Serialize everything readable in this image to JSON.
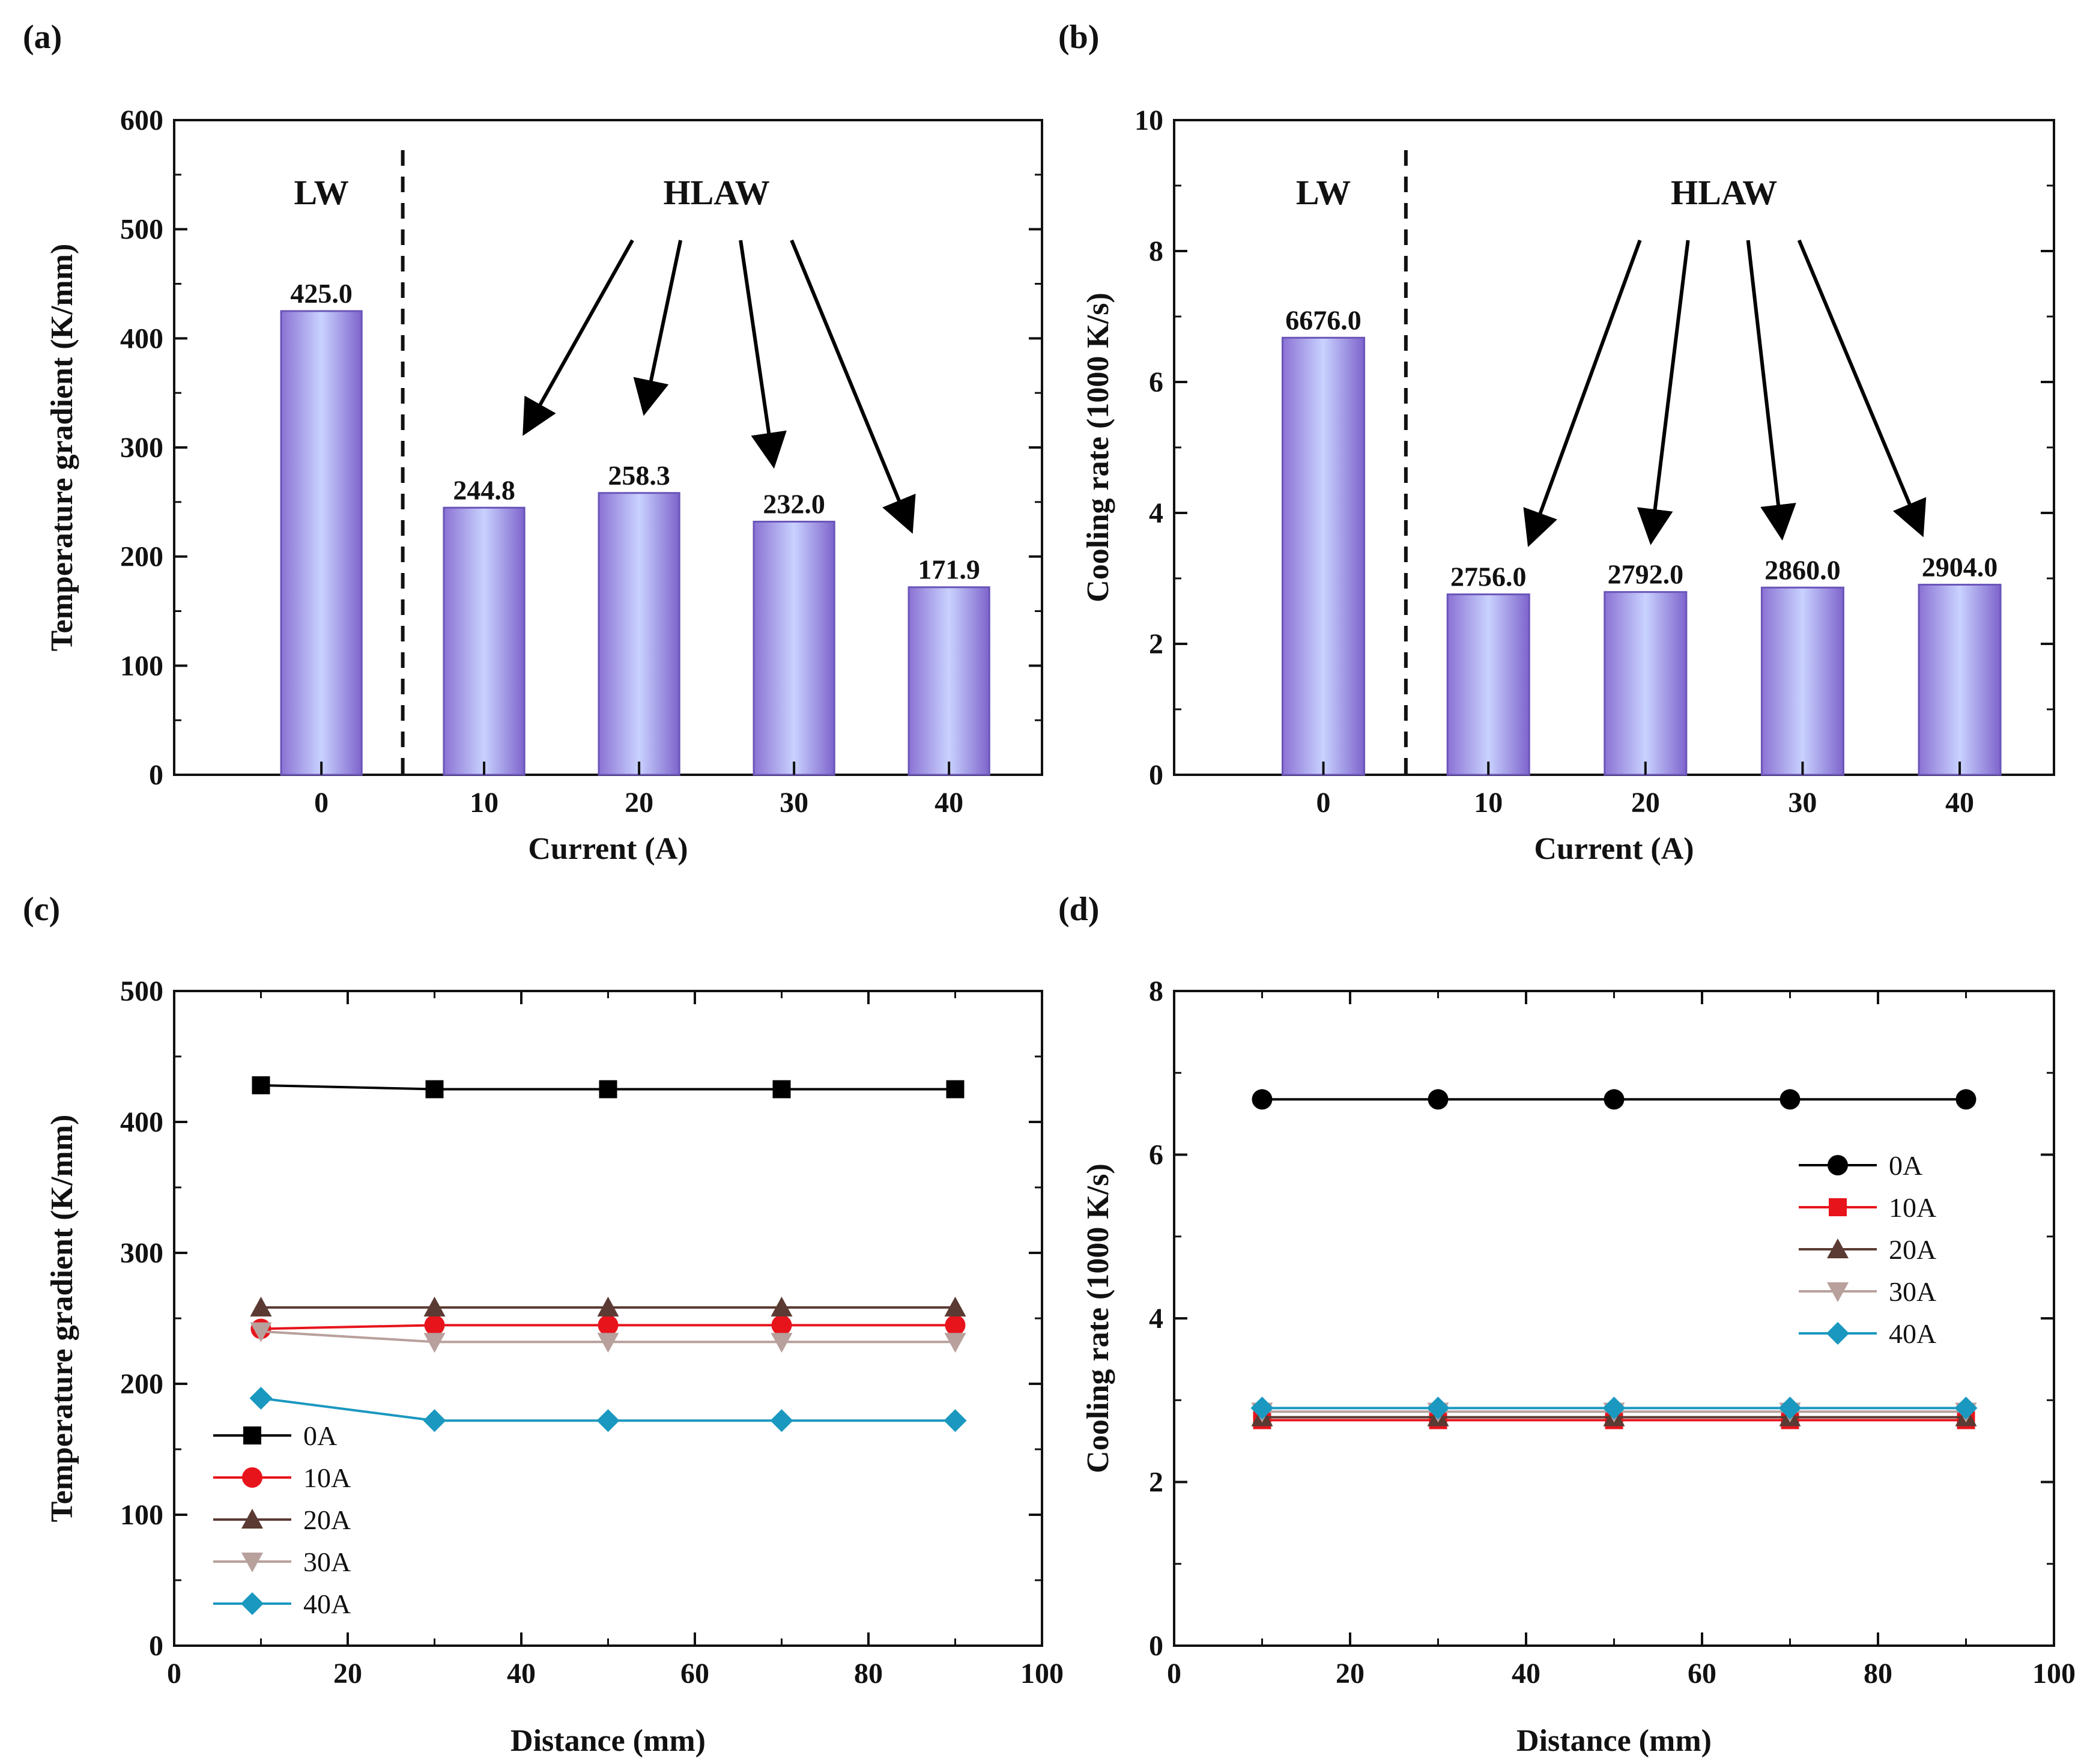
{
  "chart_data": [
    {
      "id": "a",
      "panel_label": "(a)",
      "type": "bar",
      "categories": [
        "0",
        "10",
        "20",
        "30",
        "40"
      ],
      "values": [
        425.0,
        244.8,
        258.3,
        232.0,
        171.9
      ],
      "value_labels": [
        "425.0",
        "244.8",
        "258.3",
        "232.0",
        "171.9"
      ],
      "xlabel": "Current (A)",
      "ylabel": "Temperature gradient (K/mm)",
      "ylim": [
        0,
        600
      ],
      "yticks": [
        "0",
        "100",
        "200",
        "300",
        "400",
        "500",
        "600"
      ],
      "annotations": {
        "left": "LW",
        "right": "HLAW"
      },
      "bar_color": "#9a86dc"
    },
    {
      "id": "b",
      "panel_label": "(b)",
      "type": "bar",
      "categories": [
        "0",
        "10",
        "20",
        "30",
        "40"
      ],
      "values": [
        6.676,
        2.756,
        2.792,
        2.86,
        2.904
      ],
      "value_labels": [
        "6676.0",
        "2756.0",
        "2792.0",
        "2860.0",
        "2904.0"
      ],
      "xlabel": "Current (A)",
      "ylabel": "Cooling rate (1000 K/s)",
      "ylim": [
        0,
        10
      ],
      "yticks": [
        "0",
        "2",
        "4",
        "6",
        "8",
        "10"
      ],
      "annotations": {
        "left": "LW",
        "right": "HLAW"
      },
      "bar_color": "#9a86dc"
    },
    {
      "id": "c",
      "panel_label": "(c)",
      "type": "line",
      "x": [
        10,
        30,
        50,
        70,
        90
      ],
      "series": [
        {
          "name": "0A",
          "values": [
            428,
            425,
            425,
            425,
            425
          ],
          "color": "#000000",
          "marker": "square"
        },
        {
          "name": "10A",
          "values": [
            242,
            244.8,
            244.8,
            244.8,
            244.8
          ],
          "color": "#e8141c",
          "marker": "circle"
        },
        {
          "name": "20A",
          "values": [
            258.3,
            258.3,
            258.3,
            258.3,
            258.3
          ],
          "color": "#5a3a32",
          "marker": "triangle-up"
        },
        {
          "name": "30A",
          "values": [
            240,
            232,
            232,
            232,
            232
          ],
          "color": "#b8a09c",
          "marker": "triangle-down"
        },
        {
          "name": "40A",
          "values": [
            189,
            171.9,
            171.9,
            171.9,
            171.9
          ],
          "color": "#1a98bf",
          "marker": "diamond"
        }
      ],
      "xlabel": "Distance (mm)",
      "ylabel": "Temperature gradient (K/mm)",
      "xlim": [
        0,
        100
      ],
      "ylim": [
        0,
        500
      ],
      "xticks": [
        "0",
        "20",
        "40",
        "60",
        "80",
        "100"
      ],
      "yticks": [
        "0",
        "100",
        "200",
        "300",
        "400",
        "500"
      ],
      "legend_position": "lower-left"
    },
    {
      "id": "d",
      "panel_label": "(d)",
      "type": "line",
      "x": [
        10,
        30,
        50,
        70,
        90
      ],
      "series": [
        {
          "name": "0A",
          "values": [
            6.676,
            6.676,
            6.676,
            6.676,
            6.676
          ],
          "color": "#000000",
          "marker": "circle"
        },
        {
          "name": "10A",
          "values": [
            2.756,
            2.756,
            2.756,
            2.756,
            2.756
          ],
          "color": "#e8141c",
          "marker": "square"
        },
        {
          "name": "20A",
          "values": [
            2.792,
            2.792,
            2.792,
            2.792,
            2.792
          ],
          "color": "#5a3a32",
          "marker": "triangle-up"
        },
        {
          "name": "30A",
          "values": [
            2.86,
            2.86,
            2.86,
            2.86,
            2.86
          ],
          "color": "#b8a09c",
          "marker": "triangle-down"
        },
        {
          "name": "40A",
          "values": [
            2.904,
            2.904,
            2.904,
            2.904,
            2.904
          ],
          "color": "#1a98bf",
          "marker": "diamond"
        }
      ],
      "xlabel": "Distance (mm)",
      "ylabel": "Cooling rate (1000 K/s)",
      "xlim": [
        0,
        100
      ],
      "ylim": [
        0,
        8
      ],
      "xticks": [
        "0",
        "20",
        "40",
        "60",
        "80",
        "100"
      ],
      "yticks": [
        "0",
        "2",
        "4",
        "6",
        "8"
      ],
      "legend_position": "upper-right"
    }
  ]
}
